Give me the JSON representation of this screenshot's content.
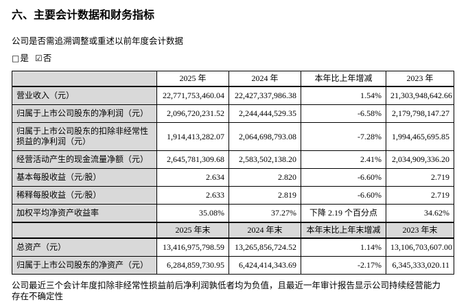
{
  "page": {
    "title": "六、主要会计数据和财务指标",
    "restate_question": "公司是否需追溯调整或重述以前年度会计数据",
    "footnote": "公司最近三个会计年度扣除非经常性损益前后净利润孰低者均为负值，且最近一年审计报告显示公司持续经营能力存在不确定性"
  },
  "options": {
    "yes": {
      "symbol": "□",
      "label": "是",
      "checked": false
    },
    "no": {
      "symbol": "☑",
      "label": "否",
      "checked": true
    }
  },
  "colors": {
    "header_bg": "#d9d9d9",
    "border": "#000000",
    "text": "#000000",
    "page_bg": "#ffffff"
  },
  "table": {
    "sections": [
      {
        "header": [
          "",
          "2025 年",
          "2024 年",
          "本年比上年增减",
          "2023 年"
        ],
        "rows": [
          {
            "label": "营业收入（元）",
            "values": [
              "22,771,753,460.04",
              "22,427,337,986.38",
              "1.54%",
              "21,303,948,642.66"
            ]
          },
          {
            "label": "归属于上市公司股东的净利润（元）",
            "values": [
              "2,096,720,231.52",
              "2,244,444,529.35",
              "-6.58%",
              "2,179,798,147.27"
            ]
          },
          {
            "label": "归属于上市公司股东的扣除非经常性损益的净利润（元）",
            "values": [
              "1,914,413,282.07",
              "2,064,698,793.08",
              "-7.28%",
              "1,994,465,695.85"
            ]
          },
          {
            "label": "经营活动产生的现金流量净额（元）",
            "values": [
              "2,645,781,309.68",
              "2,583,502,138.20",
              "2.41%",
              "2,034,909,336.20"
            ]
          },
          {
            "label": "基本每股收益（元/股）",
            "values": [
              "2.634",
              "2.820",
              "-6.60%",
              "2.719"
            ]
          },
          {
            "label": "稀释每股收益（元/股）",
            "values": [
              "2.633",
              "2.819",
              "-6.60%",
              "2.719"
            ]
          },
          {
            "label": "加权平均净资产收益率",
            "values": [
              "35.08%",
              "37.27%",
              "下降 2.19 个百分点",
              "34.62%"
            ]
          }
        ]
      },
      {
        "header": [
          "",
          "2025 年末",
          "2024 年末",
          "本年末比上年末增减",
          "2023 年末"
        ],
        "rows": [
          {
            "label": "总资产（元）",
            "values": [
              "13,416,975,798.59",
              "13,265,856,724.52",
              "1.14%",
              "13,106,703,607.00"
            ]
          },
          {
            "label": "归属于上市公司股东的净资产（元）",
            "values": [
              "6,284,859,730.95",
              "6,424,414,343.69",
              "-2.17%",
              "6,345,333,020.11"
            ]
          }
        ]
      }
    ]
  }
}
